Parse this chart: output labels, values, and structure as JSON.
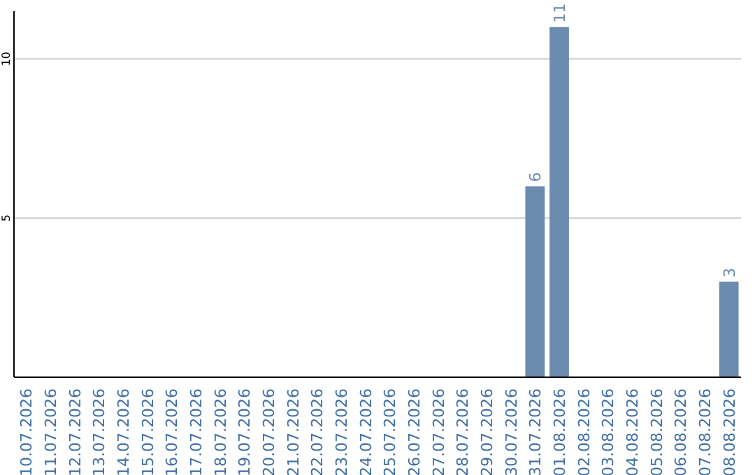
{
  "chart_data": {
    "type": "bar",
    "categories": [
      "10.07.2026",
      "11.07.2026",
      "12.07.2026",
      "13.07.2026",
      "14.07.2026",
      "15.07.2026",
      "16.07.2026",
      "17.07.2026",
      "18.07.2026",
      "19.07.2026",
      "20.07.2026",
      "21.07.2026",
      "22.07.2026",
      "23.07.2026",
      "24.07.2026",
      "25.07.2026",
      "26.07.2026",
      "27.07.2026",
      "28.07.2026",
      "29.07.2026",
      "30.07.2026",
      "31.07.2026",
      "01.08.2026",
      "02.08.2026",
      "03.08.2026",
      "04.08.2026",
      "05.08.2026",
      "06.08.2026",
      "07.08.2026",
      "08.08.2026"
    ],
    "values": [
      0,
      0,
      0,
      0,
      0,
      0,
      0,
      0,
      0,
      0,
      0,
      0,
      0,
      0,
      0,
      0,
      0,
      0,
      0,
      0,
      0,
      6,
      11,
      0,
      0,
      0,
      0,
      0,
      0,
      3
    ],
    "value_labels": [
      null,
      null,
      null,
      null,
      null,
      null,
      null,
      null,
      null,
      null,
      null,
      null,
      null,
      null,
      null,
      null,
      null,
      null,
      null,
      null,
      null,
      "6",
      "11",
      null,
      null,
      null,
      null,
      null,
      null,
      "3"
    ],
    "color": "#6b8cae",
    "ylim": [
      0,
      11.5
    ],
    "yticks": [
      5,
      10
    ],
    "grid": "y"
  }
}
